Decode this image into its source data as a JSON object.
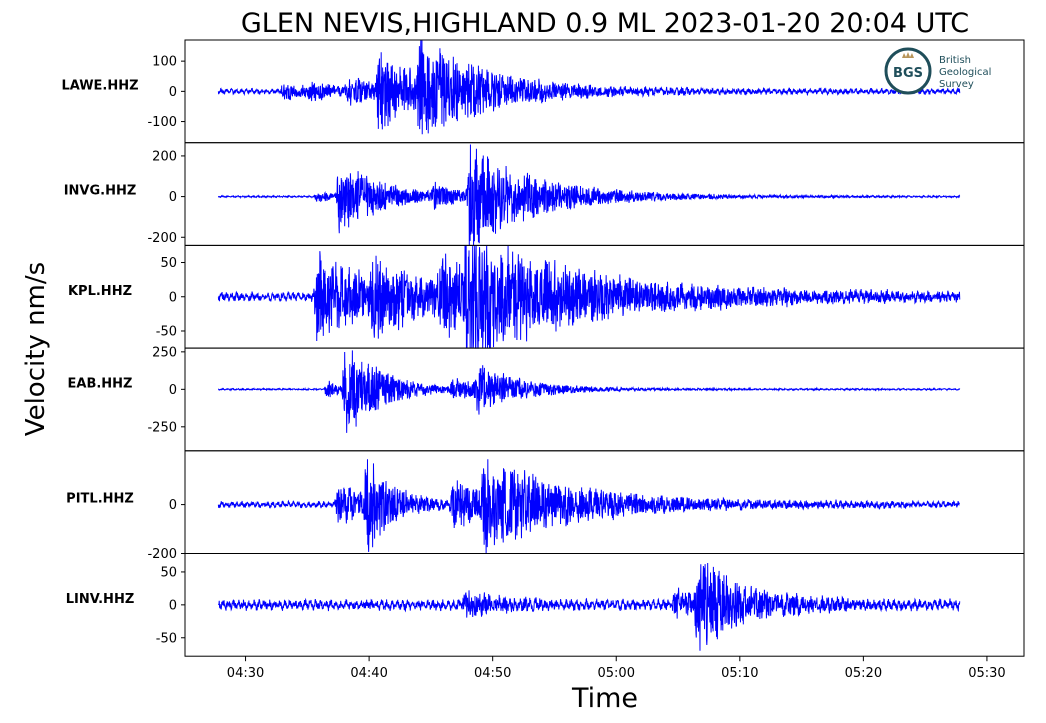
{
  "figure": {
    "title": "GLEN NEVIS,HIGHLAND 0.9 ML   2023-01-20 20:04 UTC",
    "ylabel": "Velocity nm/s",
    "xlabel": "Time"
  },
  "logo": {
    "mark_text": "BGS",
    "line1": "British",
    "line2": "Geological",
    "line3": "Survey",
    "ring_color": "#1f4e5a",
    "accent_color": "#b8955a"
  },
  "colors": {
    "trace": "#0000ff",
    "axes": "#000000"
  },
  "chart_data": {
    "type": "line",
    "x_axis": {
      "ticks": [
        "04:30",
        "04:40",
        "04:50",
        "05:00",
        "05:10",
        "05:20",
        "05:30"
      ],
      "tick_minutes": [
        30,
        40,
        50,
        60,
        70,
        80,
        90
      ],
      "range_minutes": [
        25.1,
        93.0
      ],
      "trace_start_minute": 27.8,
      "trace_end_minute": 87.8
    },
    "panels": [
      {
        "station": "LAWE.HHZ",
        "ylim": [
          -170,
          170
        ],
        "yticks": [
          100,
          0,
          -100
        ],
        "yticklabels": [
          "100",
          "0",
          "-100"
        ],
        "noise": 7,
        "events": [
          {
            "t": 32.8,
            "amp": 28,
            "decay": 2.5
          },
          {
            "t": 34.8,
            "amp": 20,
            "decay": 3
          },
          {
            "t": 38.0,
            "amp": 40,
            "decay": 4
          },
          {
            "t": 40.5,
            "amp": 140,
            "decay": 3.5
          },
          {
            "t": 43.8,
            "amp": 150,
            "decay": 6
          }
        ]
      },
      {
        "station": "INVG.HHZ",
        "ylim": [
          -240,
          265
        ],
        "yticks": [
          200,
          0,
          -200
        ],
        "yticklabels": [
          "200",
          "0",
          "-200"
        ],
        "noise": 3,
        "events": [
          {
            "t": 35.5,
            "amp": 40,
            "decay": 1.5
          },
          {
            "t": 37.3,
            "amp": 220,
            "decay": 3.5
          },
          {
            "t": 45.0,
            "amp": 60,
            "decay": 2
          },
          {
            "t": 47.8,
            "amp": 260,
            "decay": 6
          }
        ]
      },
      {
        "station": "KPL.HHZ",
        "ylim": [
          -75,
          75
        ],
        "yticks": [
          50,
          0,
          -50
        ],
        "yticklabels": [
          "50",
          "0",
          "-50"
        ],
        "noise": 5,
        "events": [
          {
            "t": 35.5,
            "amp": 70,
            "decay": 5
          },
          {
            "t": 40.0,
            "amp": 40,
            "decay": 5
          },
          {
            "t": 45.5,
            "amp": 45,
            "decay": 6
          },
          {
            "t": 47.5,
            "amp": 65,
            "decay": 12
          }
        ]
      },
      {
        "station": "EAB.HHZ",
        "ylim": [
          -410,
          275
        ],
        "yticks": [
          250,
          0,
          -250
        ],
        "yticklabels": [
          "250",
          "0",
          "-250"
        ],
        "noise": 4,
        "events": [
          {
            "t": 36.3,
            "amp": 70,
            "decay": 2
          },
          {
            "t": 37.8,
            "amp": 370,
            "decay": 3
          },
          {
            "t": 46.5,
            "amp": 70,
            "decay": 3
          },
          {
            "t": 48.5,
            "amp": 150,
            "decay": 4
          }
        ]
      },
      {
        "station": "PITL.HHZ",
        "ylim": [
          -200,
          220
        ],
        "yticks": [
          0,
          -200
        ],
        "yticklabels": [
          "0",
          "-200"
        ],
        "noise": 10,
        "events": [
          {
            "t": 37.2,
            "amp": 90,
            "decay": 3
          },
          {
            "t": 39.5,
            "amp": 200,
            "decay": 2
          },
          {
            "t": 46.5,
            "amp": 100,
            "decay": 4
          },
          {
            "t": 49.0,
            "amp": 170,
            "decay": 8
          }
        ]
      },
      {
        "station": "LINV.HHZ",
        "ylim": [
          -78,
          78
        ],
        "yticks": [
          50,
          0,
          -50
        ],
        "yticklabels": [
          "50",
          "0",
          "-50"
        ],
        "noise": 6,
        "events": [
          {
            "t": 47.5,
            "amp": 20,
            "decay": 3
          },
          {
            "t": 64.5,
            "amp": 25,
            "decay": 2
          },
          {
            "t": 66.3,
            "amp": 75,
            "decay": 4
          }
        ]
      }
    ]
  }
}
